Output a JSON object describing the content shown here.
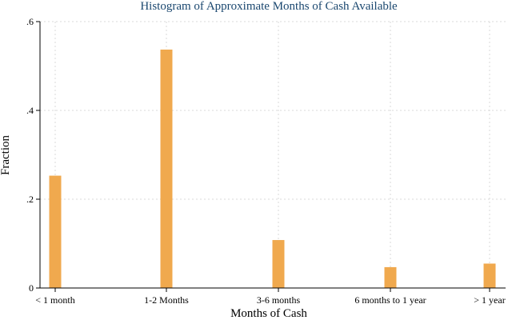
{
  "chart_data": {
    "type": "bar",
    "title": "Histogram of Approximate Months of Cash Available",
    "xlabel": "Months of Cash",
    "ylabel": "Fraction",
    "categories": [
      "< 1 month",
      "1-2 Months",
      "3-6 months",
      "6 months to 1 year",
      "> 1 year"
    ],
    "values": [
      0.253,
      0.537,
      0.108,
      0.047,
      0.055
    ],
    "ylim": [
      0,
      0.6
    ],
    "yticks": [
      0,
      0.2,
      0.4,
      0.6
    ],
    "ytick_labels": [
      "0",
      ".2",
      ".4",
      ".6"
    ],
    "grid": true,
    "bar_color": "#f0a94e"
  }
}
